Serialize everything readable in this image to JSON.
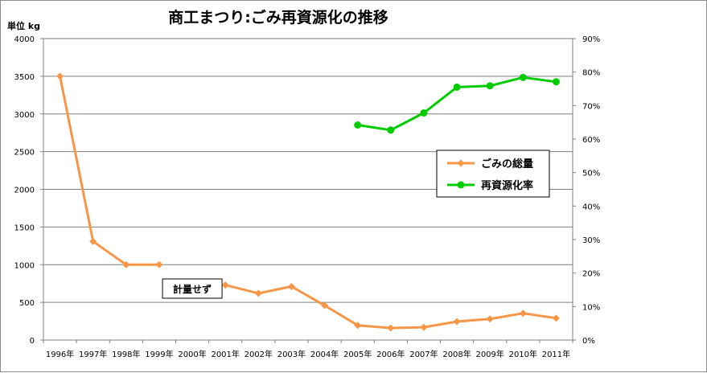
{
  "chart_data": {
    "type": "line",
    "title": "商工まつり:ごみ再資源化の推移",
    "unit_label": "単位 kg",
    "categories": [
      "1996年",
      "1997年",
      "1998年",
      "1999年",
      "2000年",
      "2001年",
      "2002年",
      "2003年",
      "2004年",
      "2005年",
      "2006年",
      "2007年",
      "2008年",
      "2009年",
      "2010年",
      "2011年"
    ],
    "ylim_left": [
      0,
      4000
    ],
    "yticks_left": [
      "0",
      "500",
      "1000",
      "1500",
      "2000",
      "2500",
      "3000",
      "3500",
      "4000"
    ],
    "ylim_right": [
      0,
      90
    ],
    "yticks_right": [
      "0%",
      "10%",
      "20%",
      "30%",
      "40%",
      "50%",
      "60%",
      "70%",
      "80%",
      "90%"
    ],
    "grid": true,
    "legend_position": "right-middle",
    "series": [
      {
        "name": "ごみの総量",
        "axis": "left",
        "color": "#f79646",
        "marker": "diamond",
        "segments": [
          [
            [
              0,
              3500
            ],
            [
              1,
              1310
            ],
            [
              2,
              1000
            ],
            [
              3,
              1000
            ]
          ],
          [
            [
              5,
              730
            ],
            [
              6,
              620
            ],
            [
              7,
              710
            ],
            [
              8,
              460
            ],
            [
              9,
              195
            ],
            [
              10,
              160
            ],
            [
              11,
              170
            ],
            [
              12,
              245
            ],
            [
              13,
              280
            ],
            [
              14,
              355
            ],
            [
              15,
              290
            ]
          ]
        ]
      },
      {
        "name": "再資源化率",
        "axis": "right",
        "color": "#00cc00",
        "marker": "circle",
        "unit": "%",
        "segments": [
          [
            [
              9,
              64.2
            ],
            [
              10,
              62.7
            ],
            [
              11,
              67.8
            ],
            [
              12,
              75.5
            ],
            [
              13,
              75.9
            ],
            [
              14,
              78.4
            ],
            [
              15,
              77.1
            ]
          ]
        ]
      }
    ],
    "annotation": {
      "text": "計量せず",
      "category": "2000年"
    }
  }
}
